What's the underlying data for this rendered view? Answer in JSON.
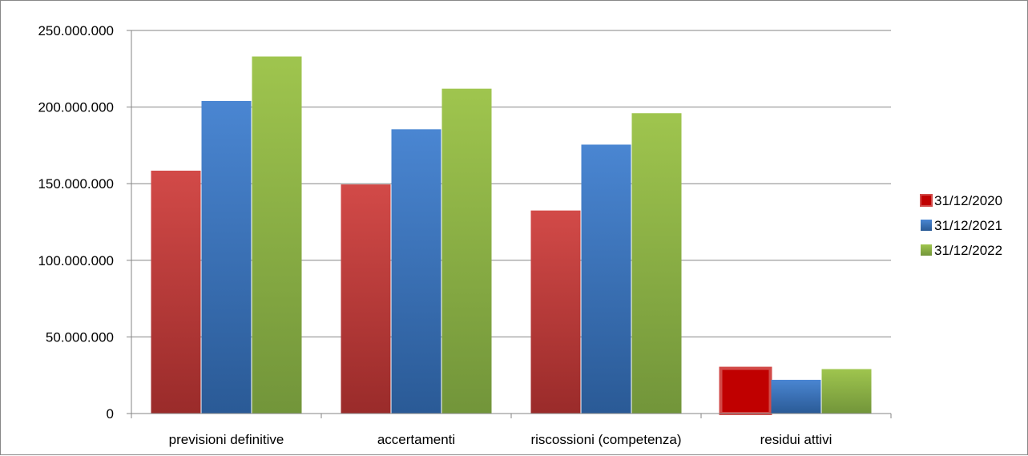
{
  "chart_data": {
    "type": "bar",
    "categories": [
      "previsioni definitive",
      "accertamenti",
      "riscossioni (competenza)",
      "residui attivi"
    ],
    "series": [
      {
        "name": "31/12/2020",
        "values": [
          158500000,
          149500000,
          132500000,
          29500000
        ]
      },
      {
        "name": "31/12/2021",
        "values": [
          204000000,
          185500000,
          175500000,
          22000000
        ]
      },
      {
        "name": "31/12/2022",
        "values": [
          233000000,
          212000000,
          196000000,
          29000000
        ]
      }
    ],
    "ylim": [
      0,
      250000000
    ],
    "yticks": [
      0,
      50000000,
      100000000,
      150000000,
      200000000,
      250000000
    ],
    "ytick_labels": [
      "0",
      "50.000.000",
      "100.000.000",
      "150.000.000",
      "200.000.000",
      "250.000.000"
    ],
    "title": "",
    "xlabel": "",
    "ylabel": "",
    "grid": true,
    "legend_position": "right",
    "colors": {
      "31/12/2020": {
        "top": "#d24a48",
        "bottom": "#9a2b2a",
        "highlight": "#c00000"
      },
      "31/12/2021": {
        "top": "#4a86d2",
        "bottom": "#2a5a96"
      },
      "31/12/2022": {
        "top": "#9fc54e",
        "bottom": "#72953a"
      }
    }
  }
}
